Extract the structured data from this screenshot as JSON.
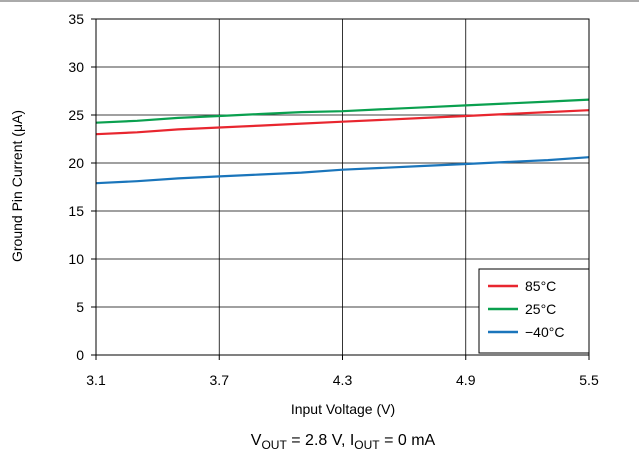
{
  "chart_data": {
    "type": "line",
    "xlabel": "Input Voltage (V)",
    "ylabel": "Ground Pin Current (μA)",
    "caption": {
      "v_main": "V",
      "v_sub": "OUT",
      "v_value": " = 2.8 V, ",
      "i_main": "I",
      "i_sub": "OUT",
      "i_value": " = 0 mA"
    },
    "xlim": [
      3.1,
      5.5
    ],
    "ylim": [
      0,
      35
    ],
    "x_ticks": [
      3.1,
      3.7,
      4.3,
      4.9,
      5.5
    ],
    "x_tick_labels": [
      "3.1",
      "3.7",
      "4.3",
      "4.9",
      "5.5"
    ],
    "y_ticks": [
      0,
      5,
      10,
      15,
      20,
      25,
      30,
      35
    ],
    "y_tick_labels": [
      "0",
      "5",
      "10",
      "15",
      "20",
      "25",
      "30",
      "35"
    ],
    "grid": true,
    "legend_position": "bottom-right",
    "series": [
      {
        "name": "85°C",
        "color": "#e8262f",
        "x": [
          3.1,
          3.3,
          3.5,
          3.7,
          3.9,
          4.1,
          4.3,
          4.5,
          4.7,
          4.9,
          5.1,
          5.3,
          5.5
        ],
        "y": [
          23.0,
          23.2,
          23.5,
          23.7,
          23.9,
          24.1,
          24.3,
          24.5,
          24.7,
          24.9,
          25.1,
          25.3,
          25.5
        ]
      },
      {
        "name": "25°C",
        "color": "#0aa04f",
        "x": [
          3.1,
          3.3,
          3.5,
          3.7,
          3.9,
          4.1,
          4.3,
          4.5,
          4.7,
          4.9,
          5.1,
          5.3,
          5.5
        ],
        "y": [
          24.2,
          24.4,
          24.7,
          24.9,
          25.1,
          25.3,
          25.4,
          25.6,
          25.8,
          26.0,
          26.2,
          26.4,
          26.6
        ]
      },
      {
        "name": "−40°C",
        "color": "#1a75bb",
        "x": [
          3.1,
          3.3,
          3.5,
          3.7,
          3.9,
          4.1,
          4.3,
          4.5,
          4.7,
          4.9,
          5.1,
          5.3,
          5.5
        ],
        "y": [
          17.9,
          18.1,
          18.4,
          18.6,
          18.8,
          19.0,
          19.3,
          19.5,
          19.7,
          19.9,
          20.1,
          20.3,
          20.6
        ]
      }
    ]
  }
}
